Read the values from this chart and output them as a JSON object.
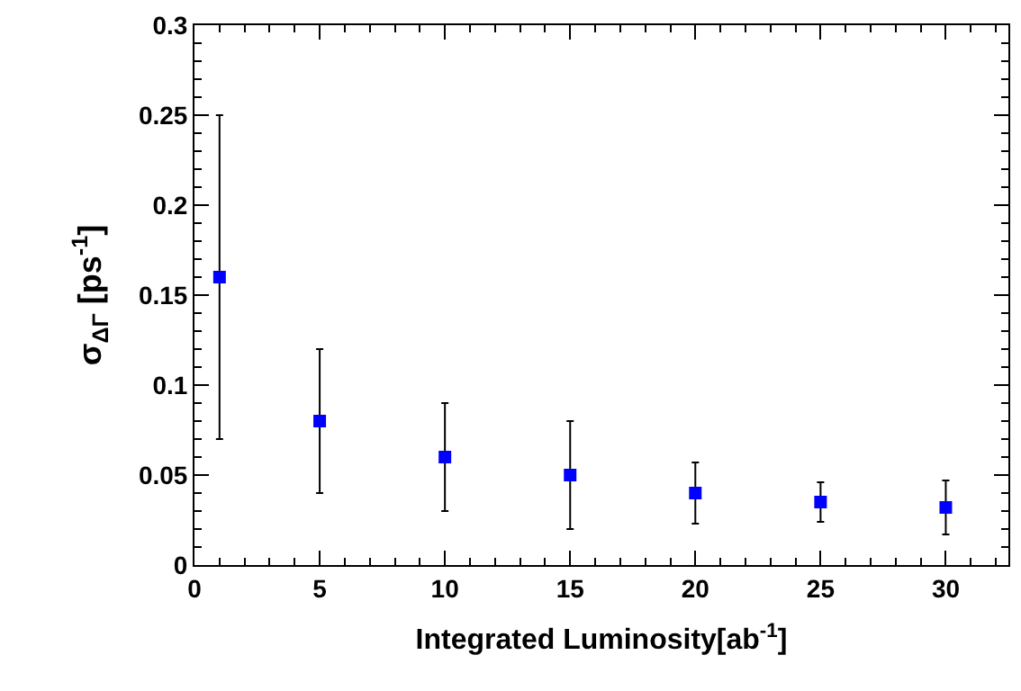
{
  "chart_data": {
    "type": "scatter",
    "xlabel": "Integrated Luminosity[ab$^{-1}$]",
    "ylabel": "σ$_{ΔΓ}$ [ps$^{-1}$]",
    "x": [
      1,
      5,
      10,
      15,
      20,
      25,
      30
    ],
    "series": [
      {
        "color": "#0000ff",
        "values": [
          0.16,
          0.08,
          0.06,
          0.05,
          0.04,
          0.035,
          0.032
        ],
        "errors": [
          0.09,
          0.04,
          0.03,
          0.03,
          0.017,
          0.011,
          0.015
        ]
      }
    ],
    "xlim": [
      0,
      32.5
    ],
    "xticks": [
      0,
      5,
      10,
      15,
      20,
      25,
      30
    ],
    "ylim": [
      0,
      0.3
    ],
    "yticks": [
      0,
      0.05,
      0.1,
      0.15,
      0.2,
      0.25,
      0.3
    ],
    "marker": "square"
  }
}
